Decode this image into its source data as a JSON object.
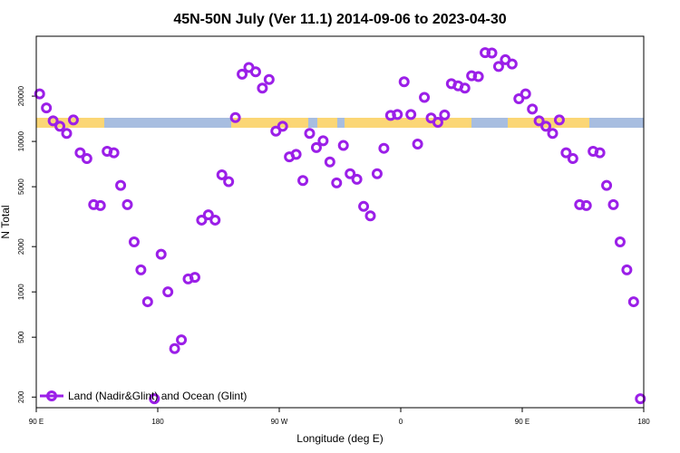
{
  "chart_data": {
    "type": "scatter",
    "title": "45N-50N July (Ver 11.1)   2014-09-06 to 2023-04-30",
    "xlabel": "Longitude (deg E)",
    "ylabel": "N Total",
    "y_scale": "log",
    "x_ticks": [
      {
        "value": 90,
        "label": "90 E"
      },
      {
        "value": 180,
        "label": "180"
      },
      {
        "value": 270,
        "label": "90 W"
      },
      {
        "value": 360,
        "label": "0"
      },
      {
        "value": 450,
        "label": "90 E"
      },
      {
        "value": 540,
        "label": "180"
      }
    ],
    "y_ticks": [
      200,
      500,
      1000,
      2000,
      5000,
      10000,
      20000
    ],
    "xlim": [
      90,
      540
    ],
    "ylim": [
      170,
      50000
    ],
    "legend": {
      "label": "Land (Nadir&Glint) and Ocean (Glint)",
      "position": "bottom-left"
    },
    "series": [
      {
        "name": "Land (Nadir&Glint) and Ocean (Glint)",
        "color": "#9b1fe8",
        "x": [
          92.5,
          97.5,
          102.5,
          107.5,
          112.5,
          117.5,
          122.5,
          127.5,
          132.5,
          137.5,
          142.5,
          147.5,
          152.5,
          157.5,
          162.5,
          167.5,
          172.5,
          177.5,
          182.5,
          187.5,
          192.5,
          197.5,
          202.5,
          207.5,
          212.5,
          217.5,
          222.5,
          227.5,
          232.5,
          237.5,
          242.5,
          247.5,
          252.5,
          257.5,
          262.5,
          267.5,
          272.5,
          277.5,
          282.5,
          287.5,
          292.5,
          297.5,
          302.5,
          307.5,
          312.5,
          317.5,
          322.5,
          327.5,
          332.5,
          337.5,
          342.5,
          347.5,
          352.5,
          357.5,
          362.5,
          367.5,
          372.5,
          377.5,
          382.5,
          387.5,
          392.5,
          397.5,
          402.5,
          407.5,
          412.5,
          417.5,
          422.5,
          427.5,
          432.5,
          437.5,
          442.5,
          447.5,
          452.5,
          457.5,
          462.5,
          467.5,
          472.5,
          477.5,
          482.5,
          487.5,
          492.5,
          497.5,
          502.5,
          507.5,
          512.5,
          517.5,
          522.5,
          527.5,
          532.5,
          537.5
        ],
        "y": [
          20700,
          16700,
          13700,
          12600,
          11300,
          13900,
          8400,
          7700,
          3800,
          3750,
          8600,
          8400,
          5100,
          3800,
          2150,
          1400,
          860,
          195,
          1780,
          1000,
          420,
          480,
          1220,
          1250,
          3000,
          3250,
          3000,
          6000,
          5400,
          14400,
          28000,
          31000,
          29000,
          22600,
          25800,
          11700,
          12600,
          7900,
          8200,
          5500,
          11300,
          9100,
          10100,
          7300,
          5300,
          9400,
          6100,
          5600,
          3700,
          3200,
          6100,
          9000,
          14900,
          15100,
          24900,
          15100,
          9600,
          19600,
          14300,
          13400,
          15000,
          24200,
          23400,
          22600,
          27300,
          27000,
          38900,
          38700,
          31500,
          34900,
          32700,
          19200,
          20700,
          16400,
          13700,
          12600,
          11300,
          13900,
          8400,
          7700,
          3800,
          3750,
          8600,
          8400,
          5100,
          3800,
          2150,
          1400,
          860,
          195
        ]
      }
    ]
  }
}
